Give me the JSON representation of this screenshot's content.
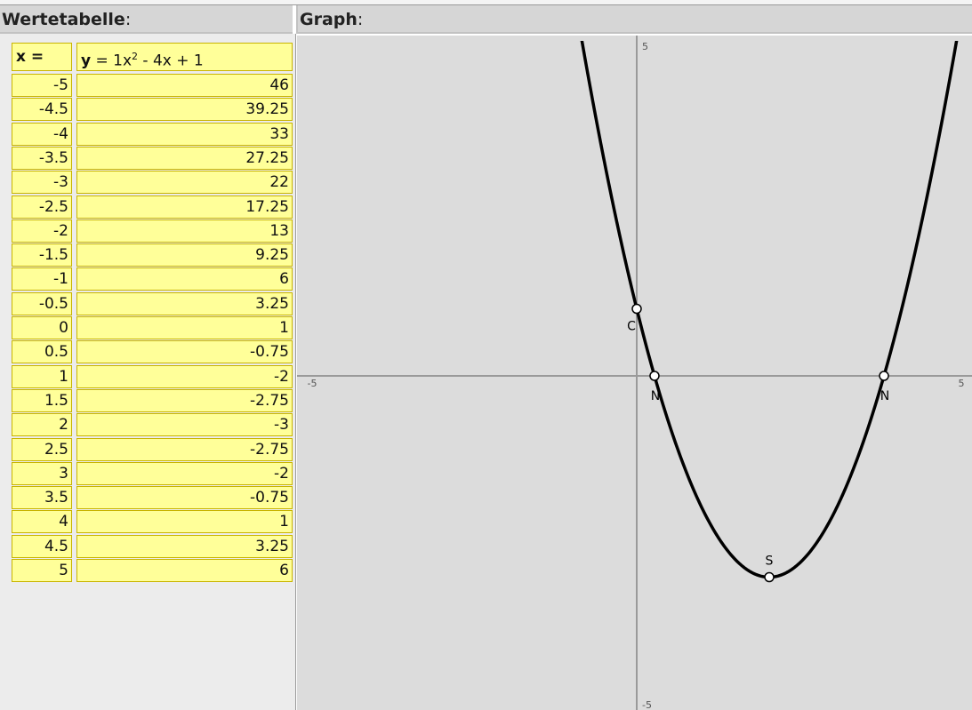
{
  "headers": {
    "table_title": "Wertetabelle",
    "graph_title": "Graph",
    "colon": ":"
  },
  "table": {
    "x_header": "x =",
    "y_header_bold": "y",
    "y_header_rest": "= 1x",
    "y_header_exp": "2",
    "y_header_tail": " - 4x + 1",
    "rows": [
      {
        "x": "-5",
        "y": "46"
      },
      {
        "x": "-4.5",
        "y": "39.25"
      },
      {
        "x": "-4",
        "y": "33"
      },
      {
        "x": "-3.5",
        "y": "27.25"
      },
      {
        "x": "-3",
        "y": "22"
      },
      {
        "x": "-2.5",
        "y": "17.25"
      },
      {
        "x": "-2",
        "y": "13"
      },
      {
        "x": "-1.5",
        "y": "9.25"
      },
      {
        "x": "-1",
        "y": "6"
      },
      {
        "x": "-0.5",
        "y": "3.25"
      },
      {
        "x": "0",
        "y": "1"
      },
      {
        "x": "0.5",
        "y": "-0.75"
      },
      {
        "x": "1",
        "y": "-2"
      },
      {
        "x": "1.5",
        "y": "-2.75"
      },
      {
        "x": "2",
        "y": "-3"
      },
      {
        "x": "2.5",
        "y": "-2.75"
      },
      {
        "x": "3",
        "y": "-2"
      },
      {
        "x": "3.5",
        "y": "-0.75"
      },
      {
        "x": "4",
        "y": "1"
      },
      {
        "x": "4.5",
        "y": "3.25"
      },
      {
        "x": "5",
        "y": "6"
      }
    ]
  },
  "chart_data": {
    "type": "line",
    "function": "y = x^2 - 4x + 1",
    "xlim": [
      -5,
      5
    ],
    "ylim": [
      -5,
      5
    ],
    "tick_labels": {
      "x_min": "-5",
      "x_max": "5",
      "y_max": "5",
      "y_min": "-5"
    },
    "points": [
      {
        "label": "C",
        "x": 0,
        "y": 1
      },
      {
        "label": "N",
        "x": 0.268,
        "y": 0
      },
      {
        "label": "N",
        "x": 3.732,
        "y": 0
      },
      {
        "label": "S",
        "x": 2,
        "y": -3
      }
    ],
    "colors": {
      "curve": "#000000",
      "axis": "#9a9a9a",
      "background": "#dcdcdc",
      "cell": "#ffff99"
    }
  }
}
